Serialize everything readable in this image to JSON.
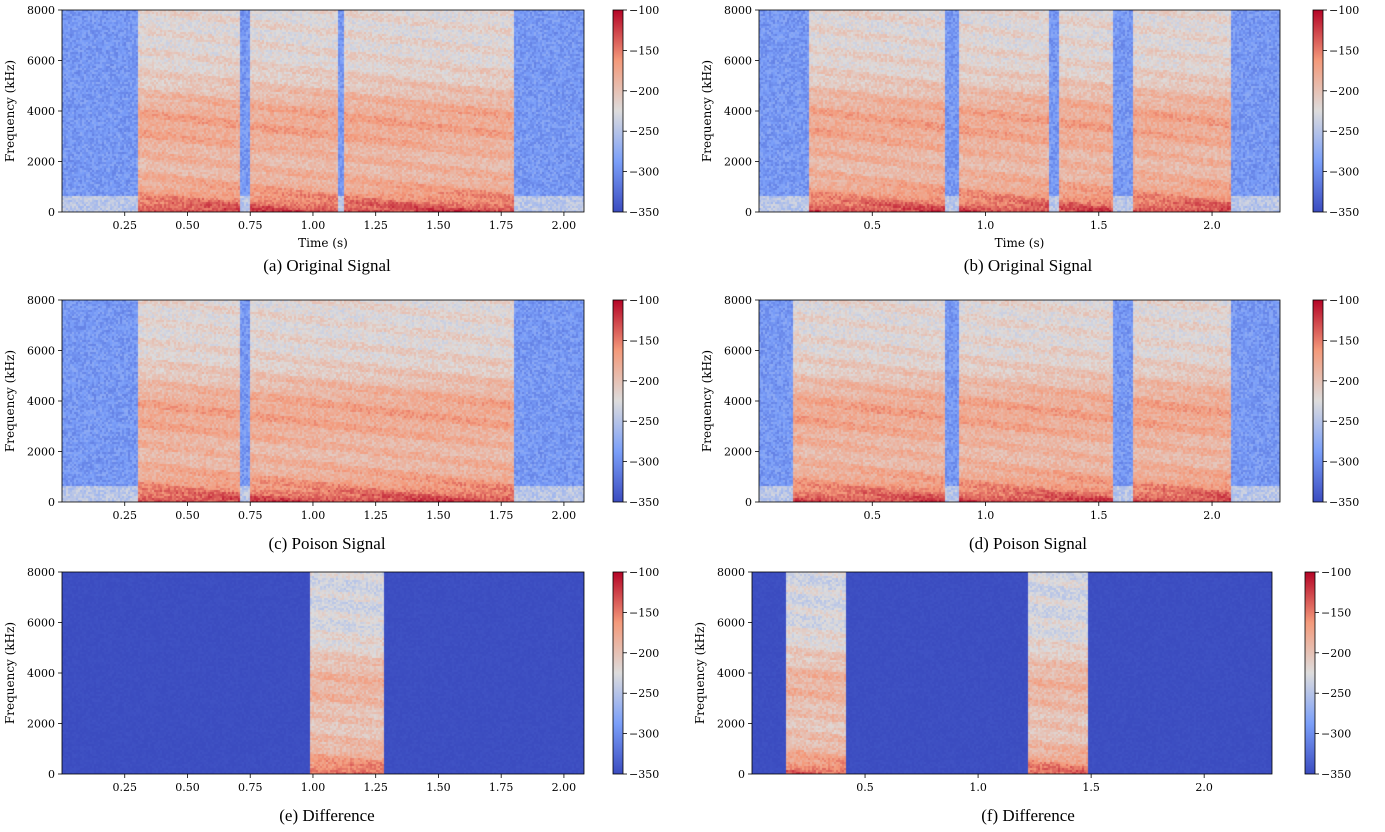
{
  "chart_data": [
    {
      "type": "heatmap",
      "caption": "(a) Original Signal",
      "xlabel": "Time (s)",
      "ylabel": "Frequency (kHz)",
      "xlim": [
        0.0,
        2.08
      ],
      "ylim": [
        0,
        8000
      ],
      "xticks": [
        0.25,
        0.5,
        0.75,
        1.0,
        1.25,
        1.5,
        1.75,
        2.0
      ],
      "xtick_labels": [
        "0.25",
        "0.50",
        "0.75",
        "1.00",
        "1.25",
        "1.50",
        "1.75",
        "2.00"
      ],
      "yticks": [
        0,
        2000,
        4000,
        6000,
        8000
      ],
      "ytick_labels": [
        "0",
        "2000",
        "4000",
        "6000",
        "8000"
      ],
      "colorbar": {
        "range": [
          -350,
          -100
        ],
        "ticks": [
          -100,
          -150,
          -200,
          -250,
          -300,
          -350
        ],
        "tick_labels": [
          "−100",
          "−150",
          "−200",
          "−250",
          "−300",
          "−350"
        ]
      },
      "colormap": "coolwarm",
      "segments": [
        [
          0.3,
          0.45
        ],
        [
          0.45,
          0.71
        ],
        [
          0.75,
          1.1
        ],
        [
          1.12,
          1.38
        ],
        [
          1.38,
          1.8
        ]
      ]
    },
    {
      "type": "heatmap",
      "caption": "(b) Original Signal",
      "xlabel": "Time (s)",
      "ylabel": "Frequency (kHz)",
      "xlim": [
        0.0,
        2.3
      ],
      "ylim": [
        0,
        8000
      ],
      "xticks": [
        0.5,
        1.0,
        1.5,
        2.0
      ],
      "xtick_labels": [
        "0.5",
        "1.0",
        "1.5",
        "2.0"
      ],
      "yticks": [
        0,
        2000,
        4000,
        6000,
        8000
      ],
      "ytick_labels": [
        "0",
        "2000",
        "4000",
        "6000",
        "8000"
      ],
      "colorbar": {
        "range": [
          -350,
          -100
        ],
        "ticks": [
          -100,
          -150,
          -200,
          -250,
          -300,
          -350
        ],
        "tick_labels": [
          "−100",
          "−150",
          "−200",
          "−250",
          "−300",
          "−350"
        ]
      },
      "colormap": "coolwarm",
      "segments": [
        [
          0.22,
          0.82
        ],
        [
          0.88,
          1.28
        ],
        [
          1.32,
          1.56
        ],
        [
          1.65,
          2.08
        ]
      ]
    },
    {
      "type": "heatmap",
      "caption": "(c) Poison Signal",
      "xlabel": "",
      "ylabel": "Frequency (kHz)",
      "xlim": [
        0.0,
        2.08
      ],
      "ylim": [
        0,
        8000
      ],
      "xticks": [
        0.25,
        0.5,
        0.75,
        1.0,
        1.25,
        1.5,
        1.75,
        2.0
      ],
      "xtick_labels": [
        "0.25",
        "0.50",
        "0.75",
        "1.00",
        "1.25",
        "1.50",
        "1.75",
        "2.00"
      ],
      "yticks": [
        0,
        2000,
        4000,
        6000,
        8000
      ],
      "ytick_labels": [
        "0",
        "2000",
        "4000",
        "6000",
        "8000"
      ],
      "colorbar": {
        "range": [
          -350,
          -100
        ],
        "ticks": [
          -100,
          -150,
          -200,
          -250,
          -300,
          -350
        ],
        "tick_labels": [
          "−100",
          "−150",
          "−200",
          "−250",
          "−300",
          "−350"
        ]
      },
      "colormap": "coolwarm",
      "segments": [
        [
          0.3,
          0.45
        ],
        [
          0.45,
          0.71
        ],
        [
          0.75,
          1.0
        ],
        [
          1.0,
          1.28
        ],
        [
          1.28,
          1.38
        ],
        [
          1.38,
          1.8
        ]
      ]
    },
    {
      "type": "heatmap",
      "caption": "(d) Poison Signal",
      "xlabel": "",
      "ylabel": "Frequency (kHz)",
      "xlim": [
        0.0,
        2.3
      ],
      "ylim": [
        0,
        8000
      ],
      "xticks": [
        0.5,
        1.0,
        1.5,
        2.0
      ],
      "xtick_labels": [
        "0.5",
        "1.0",
        "1.5",
        "2.0"
      ],
      "yticks": [
        0,
        2000,
        4000,
        6000,
        8000
      ],
      "ytick_labels": [
        "0",
        "2000",
        "4000",
        "6000",
        "8000"
      ],
      "colorbar": {
        "range": [
          -350,
          -100
        ],
        "ticks": [
          -100,
          -150,
          -200,
          -250,
          -300,
          -350
        ],
        "tick_labels": [
          "−100",
          "−150",
          "−200",
          "−250",
          "−300",
          "−350"
        ]
      },
      "colormap": "coolwarm",
      "segments": [
        [
          0.15,
          0.42
        ],
        [
          0.42,
          0.82
        ],
        [
          0.88,
          1.22
        ],
        [
          1.22,
          1.49
        ],
        [
          1.49,
          1.56
        ],
        [
          1.65,
          2.08
        ]
      ]
    },
    {
      "type": "heatmap",
      "caption": "(e) Difference",
      "xlabel": "",
      "ylabel": "Frequency (kHz)",
      "xlim": [
        0.0,
        2.08
      ],
      "ylim": [
        0,
        8000
      ],
      "xticks": [
        0.25,
        0.5,
        0.75,
        1.0,
        1.25,
        1.5,
        1.75,
        2.0
      ],
      "xtick_labels": [
        "0.25",
        "0.50",
        "0.75",
        "1.00",
        "1.25",
        "1.50",
        "1.75",
        "2.00"
      ],
      "yticks": [
        0,
        2000,
        4000,
        6000,
        8000
      ],
      "ytick_labels": [
        "0",
        "2000",
        "4000",
        "6000",
        "8000"
      ],
      "colorbar": {
        "range": [
          -350,
          -100
        ],
        "ticks": [
          -100,
          -150,
          -200,
          -250,
          -300,
          -350
        ],
        "tick_labels": [
          "−100",
          "−150",
          "−200",
          "−250",
          "−300",
          "−350"
        ]
      },
      "colormap": "coolwarm",
      "background_level": -345,
      "segments": [
        [
          0.99,
          1.28
        ]
      ]
    },
    {
      "type": "heatmap",
      "caption": "(f) Difference",
      "xlabel": "",
      "ylabel": "Frequency (kHz)",
      "xlim": [
        0.0,
        2.3
      ],
      "ylim": [
        0,
        8000
      ],
      "xticks": [
        0.5,
        1.0,
        1.5,
        2.0
      ],
      "xtick_labels": [
        "0.5",
        "1.0",
        "1.5",
        "2.0"
      ],
      "yticks": [
        0,
        2000,
        4000,
        6000,
        8000
      ],
      "ytick_labels": [
        "0",
        "2000",
        "4000",
        "6000",
        "8000"
      ],
      "colorbar": {
        "range": [
          -350,
          -100
        ],
        "ticks": [
          -100,
          -150,
          -200,
          -250,
          -300,
          -350
        ],
        "tick_labels": [
          "−100",
          "−150",
          "−200",
          "−250",
          "−300",
          "−350"
        ]
      },
      "colormap": "coolwarm",
      "background_level": -345,
      "segments": [
        [
          0.15,
          0.42
        ],
        [
          1.22,
          1.49
        ]
      ]
    }
  ]
}
